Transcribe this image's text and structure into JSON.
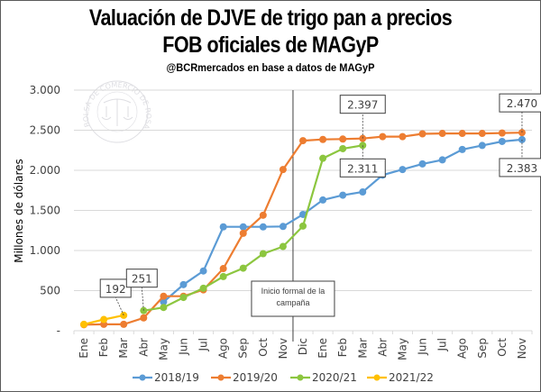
{
  "chart_data": {
    "type": "line",
    "title": "Valuación de DJVE de trigo pan a precios",
    "title_line2": "FOB oficiales de MAGyP",
    "subtitle": "@BCRmercados  en base a datos de MAGyP",
    "ylabel": "Millones de dólares",
    "xlabel": "",
    "ylim": [
      0,
      3000
    ],
    "yticks": [
      0,
      500,
      1000,
      1500,
      2000,
      2500,
      3000
    ],
    "ytick_labels": [
      "-",
      "500",
      "1.000",
      "1.500",
      "2.000",
      "2.500",
      "3.000"
    ],
    "grid": true,
    "categories": [
      "Ene",
      "Feb",
      "Mar",
      "Abr",
      "May",
      "Jun",
      "Jul",
      "Ago",
      "Sep",
      "Oct",
      "Nov",
      "Dic",
      "Ene",
      "Feb",
      "Mar",
      "Abr",
      "May",
      "Jun",
      "Jul",
      "Ago",
      "Sep",
      "Oct",
      "Nov"
    ],
    "series": [
      {
        "name": "2018/19",
        "color": "#5b9bd5",
        "values": [
          null,
          null,
          null,
          null,
          360,
          575,
          745,
          1295,
          1295,
          1295,
          1300,
          1450,
          1630,
          1690,
          1730,
          1940,
          2010,
          2080,
          2130,
          2260,
          2310,
          2360,
          2383
        ]
      },
      {
        "name": "2019/20",
        "color": "#ed7d31",
        "values": [
          75,
          80,
          80,
          160,
          430,
          430,
          510,
          775,
          1215,
          1440,
          2010,
          2370,
          2385,
          2390,
          2397,
          2420,
          2420,
          2455,
          2460,
          2460,
          2460,
          2465,
          2470
        ]
      },
      {
        "name": "2020/21",
        "color": "#8cc63f",
        "values": [
          null,
          null,
          null,
          251,
          290,
          415,
          530,
          675,
          780,
          960,
          1050,
          1305,
          2150,
          2270,
          2311,
          null,
          null,
          null,
          null,
          null,
          null,
          null,
          null
        ]
      },
      {
        "name": "2021/22",
        "color": "#ffc000",
        "values": [
          80,
          140,
          192,
          null,
          null,
          null,
          null,
          null,
          null,
          null,
          null,
          null,
          null,
          null,
          null,
          null,
          null,
          null,
          null,
          null,
          null,
          null,
          null
        ]
      }
    ],
    "data_labels": [
      {
        "series": "2021/22",
        "index": 2,
        "text": "192"
      },
      {
        "series": "2020/21",
        "index": 3,
        "text": "251"
      },
      {
        "series": "2019/20",
        "index": 14,
        "text": "2.397"
      },
      {
        "series": "2020/21",
        "index": 14,
        "text": "2.311"
      },
      {
        "series": "2019/20",
        "index": 22,
        "text": "2.470"
      },
      {
        "series": "2018/19",
        "index": 22,
        "text": "2.383"
      }
    ],
    "annotation": {
      "line1": "Inicio formal de la",
      "line2": "campaña",
      "between": [
        "Nov",
        "Dic"
      ]
    },
    "legend_position": "bottom",
    "watermark": "BOLSA DE COMERCIO DE ROSARIO"
  }
}
